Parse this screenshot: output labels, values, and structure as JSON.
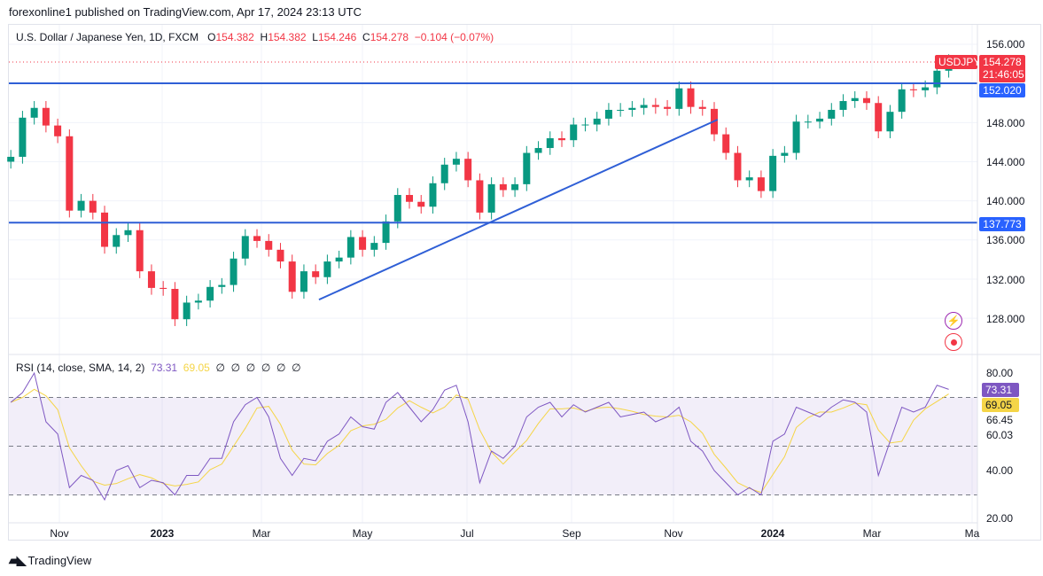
{
  "header": {
    "publisher": "forexonline1 published on TradingView.com, Apr 17, 2024 23:13 UTC"
  },
  "legend": {
    "symbol": "U.S. Dollar / Japanese Yen, 1D, FXCM",
    "o_label": "O",
    "o": "154.382",
    "h_label": "H",
    "h": "154.382",
    "l_label": "L",
    "l": "154.246",
    "c_label": "C",
    "c": "154.278",
    "change": "−0.104 (−0.07%)"
  },
  "rsi_legend": {
    "title": "RSI (14, close, SMA, 14, 2)",
    "rsi": "73.31",
    "sma": "69.05",
    "empty": [
      "∅",
      "∅",
      "∅",
      "∅",
      "∅",
      "∅"
    ]
  },
  "price_axis": {
    "ticks": [
      "156.000",
      "148.000",
      "144.000",
      "140.000",
      "136.000",
      "132.000",
      "128.000"
    ],
    "symbol_tag": "USDJPY",
    "last_price": "154.278",
    "countdown": "21:46:05",
    "line1_tag": "152.020",
    "line2_tag": "137.773"
  },
  "rsi_axis": {
    "ticks": [
      "80.00",
      "66.45",
      "60.03",
      "40.00",
      "20.00"
    ],
    "rsi_tag": "73.31",
    "sma_tag": "69.05"
  },
  "time_axis": {
    "labels": [
      "Nov",
      "2023",
      "Mar",
      "May",
      "Jul",
      "Sep",
      "Nov",
      "2024",
      "Mar",
      "Ma"
    ]
  },
  "footer": {
    "brand": "TradingView"
  },
  "colors": {
    "up": "#089981",
    "down": "#f23645",
    "line": "#2f5fd6",
    "rsi": "#7e57c2",
    "sma": "#f5d547"
  },
  "chart_data": [
    {
      "type": "candlestick",
      "title": "U.S. Dollar / Japanese Yen, 1D, FXCM",
      "ylim": [
        125,
        157
      ],
      "grid": true,
      "x": [
        "2022-10-03",
        "2022-10-10",
        "2022-10-17",
        "2022-10-24",
        "2022-10-31",
        "2022-11-07",
        "2022-11-14",
        "2022-11-21",
        "2022-11-28",
        "2022-12-05",
        "2022-12-12",
        "2022-12-19",
        "2022-12-26",
        "2023-01-02",
        "2023-01-09",
        "2023-01-16",
        "2023-01-23",
        "2023-01-30",
        "2023-02-06",
        "2023-02-13",
        "2023-02-20",
        "2023-02-27",
        "2023-03-06",
        "2023-03-13",
        "2023-03-20",
        "2023-03-27",
        "2023-04-03",
        "2023-04-10",
        "2023-04-17",
        "2023-04-24",
        "2023-05-01",
        "2023-05-08",
        "2023-05-15",
        "2023-05-22",
        "2023-05-29",
        "2023-06-05",
        "2023-06-12",
        "2023-06-19",
        "2023-06-26",
        "2023-07-03",
        "2023-07-10",
        "2023-07-17",
        "2023-07-24",
        "2023-07-31",
        "2023-08-07",
        "2023-08-14",
        "2023-08-21",
        "2023-08-28",
        "2023-09-04",
        "2023-09-11",
        "2023-09-18",
        "2023-09-25",
        "2023-10-02",
        "2023-10-09",
        "2023-10-16",
        "2023-10-23",
        "2023-10-30",
        "2023-11-06",
        "2023-11-13",
        "2023-11-20",
        "2023-11-27",
        "2023-12-04",
        "2023-12-11",
        "2023-12-18",
        "2023-12-25",
        "2024-01-01",
        "2024-01-08",
        "2024-01-15",
        "2024-01-22",
        "2024-01-29",
        "2024-02-05",
        "2024-02-12",
        "2024-02-19",
        "2024-02-26",
        "2024-03-04",
        "2024-03-11",
        "2024-03-18",
        "2024-03-25",
        "2024-04-01",
        "2024-04-08",
        "2024-04-15"
      ],
      "close": [
        144.5,
        148.5,
        149.5,
        147.7,
        146.6,
        139.0,
        140.0,
        138.8,
        135.3,
        136.5,
        137.0,
        132.8,
        131.1,
        131.0,
        127.9,
        129.6,
        129.8,
        131.2,
        131.4,
        134.1,
        136.4,
        135.9,
        135.0,
        133.8,
        130.7,
        132.8,
        132.2,
        133.8,
        134.2,
        136.3,
        135.0,
        135.7,
        137.9,
        140.6,
        139.9,
        139.4,
        141.8,
        143.7,
        144.3,
        142.1,
        138.8,
        141.7,
        141.1,
        141.7,
        144.9,
        145.4,
        146.4,
        146.2,
        147.8,
        147.8,
        148.4,
        149.3,
        149.3,
        149.5,
        149.8,
        149.6,
        149.4,
        151.5,
        149.6,
        149.4,
        146.8,
        144.9,
        142.1,
        142.4,
        141.0,
        144.6,
        144.9,
        148.1,
        148.1,
        148.4,
        149.3,
        150.2,
        150.5,
        150.0,
        147.1,
        149.1,
        151.4,
        151.3,
        151.6,
        153.3,
        154.278
      ],
      "drawings": {
        "horizontal_lines": [
          152.02,
          137.773
        ],
        "trend_line": [
          [
            "2023-04-05",
            129.9
          ],
          [
            "2023-11-29",
            148.3
          ]
        ]
      }
    },
    {
      "type": "line",
      "title": "RSI (14, close, SMA, 14, 2)",
      "ylim": [
        18,
        85
      ],
      "bands": [
        30,
        50,
        70
      ],
      "series": [
        {
          "name": "RSI",
          "values": [
            68,
            72,
            80,
            60,
            55,
            33,
            38,
            36,
            28,
            40,
            42,
            33,
            36,
            35,
            30,
            38,
            38,
            45,
            45,
            60,
            67,
            70,
            62,
            45,
            38,
            45,
            44,
            52,
            55,
            62,
            58,
            57,
            68,
            72,
            66,
            60,
            65,
            73,
            75,
            60,
            35,
            48,
            45,
            50,
            62,
            66,
            68,
            62,
            67,
            64,
            66,
            68,
            62,
            63,
            64,
            60,
            62,
            66,
            52,
            48,
            40,
            35,
            30,
            33,
            30,
            52,
            55,
            66,
            64,
            62,
            66,
            69,
            68,
            64,
            38,
            52,
            66,
            64,
            66,
            75,
            73.31
          ]
        }
      ]
    }
  ]
}
